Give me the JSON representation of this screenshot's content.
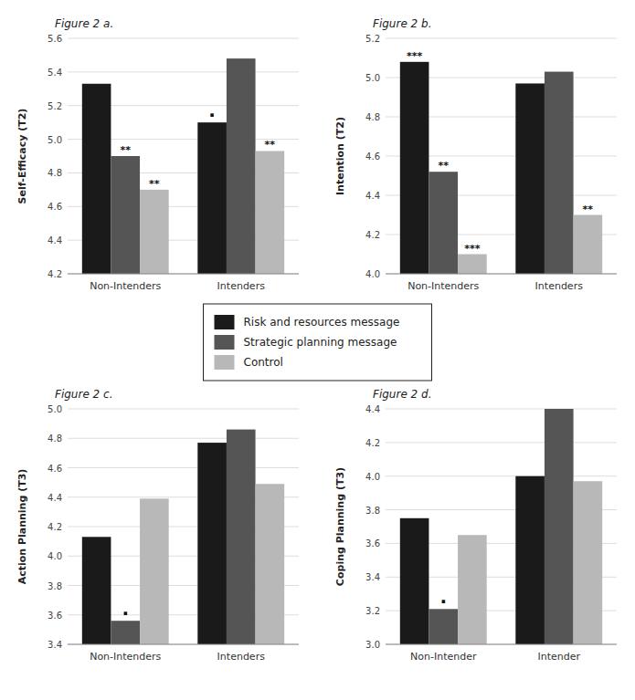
{
  "chart_data": [
    {
      "type": "bar",
      "title": "Figure 2 a.",
      "y_label": "Self-Efficacy (T2)",
      "categories": [
        "Non-Intenders",
        "Intenders"
      ],
      "series": [
        {
          "name": "Risk and resources message",
          "color": "#1a1a1a",
          "values": [
            5.33,
            5.1
          ]
        },
        {
          "name": "Strategic planning message",
          "color": "#555555",
          "values": [
            4.9,
            5.48
          ]
        },
        {
          "name": "Control",
          "color": "#b8b8b8",
          "values": [
            4.7,
            4.93
          ]
        }
      ],
      "ylim": [
        4.2,
        5.6
      ],
      "yticks": [
        4.2,
        4.4,
        4.6,
        4.8,
        {
          "value": 5,
          "label": "5.0"
        },
        5.2,
        5.4,
        5.6
      ],
      "grid": true,
      "annotations": [
        {
          "text": "**",
          "category": "Non-Intenders",
          "series": "Strategic planning message"
        },
        {
          "text": "**",
          "category": "Non-Intenders",
          "series": "Control"
        },
        {
          "text": "·",
          "category": "Intenders",
          "series": "Risk and resources message"
        },
        {
          "text": "**",
          "category": "Intenders",
          "series": "Control"
        }
      ]
    },
    {
      "type": "bar",
      "title": "Figure 2 b.",
      "y_label": "Intention (T2)",
      "categories": [
        "Non-Intenders",
        "Intenders"
      ],
      "series": [
        {
          "name": "Risk and resources message",
          "color": "#1a1a1a",
          "values": [
            5.08,
            4.97
          ]
        },
        {
          "name": "Strategic planning message",
          "color": "#555555",
          "values": [
            4.52,
            5.03
          ]
        },
        {
          "name": "Control",
          "color": "#b8b8b8",
          "values": [
            4.1,
            4.3
          ]
        }
      ],
      "ylim": [
        4.0,
        5.2
      ],
      "yticks": [
        {
          "value": 4,
          "label": "4.0"
        },
        4.2,
        4.4,
        4.6,
        4.8,
        {
          "value": 5,
          "label": "5.0"
        },
        5.2
      ],
      "grid": true,
      "annotations": [
        {
          "text": "***",
          "category": "Non-Intenders",
          "series": "Risk and resources message"
        },
        {
          "text": "**",
          "category": "Non-Intenders",
          "series": "Strategic planning message"
        },
        {
          "text": "***",
          "category": "Non-Intenders",
          "series": "Control"
        },
        {
          "text": "**",
          "category": "Intenders",
          "series": "Control"
        }
      ]
    },
    {
      "type": "bar",
      "title": "Figure 2 c.",
      "y_label": "Action Planning (T3)",
      "categories": [
        "Non-Intenders",
        "Intenders"
      ],
      "series": [
        {
          "name": "Risk and resources message",
          "color": "#1a1a1a",
          "values": [
            4.13,
            4.77
          ]
        },
        {
          "name": "Strategic planning message",
          "color": "#555555",
          "values": [
            3.56,
            4.86
          ]
        },
        {
          "name": "Control",
          "color": "#b8b8b8",
          "values": [
            4.39,
            4.49
          ]
        }
      ],
      "ylim": [
        3.4,
        5.0
      ],
      "yticks": [
        3.4,
        3.6,
        3.8,
        {
          "value": 4,
          "label": "4.0"
        },
        4.2,
        4.4,
        4.6,
        4.8,
        {
          "value": 5,
          "label": "5.0"
        }
      ],
      "grid": true,
      "annotations": [
        {
          "text": "·",
          "category": "Non-Intenders",
          "series": "Strategic planning message"
        }
      ]
    },
    {
      "type": "bar",
      "title": "Figure 2 d.",
      "y_label": "Coping Planning (T3)",
      "categories": [
        "Non-Intender",
        "Intender"
      ],
      "series": [
        {
          "name": "Risk and resources message",
          "color": "#1a1a1a",
          "values": [
            3.75,
            4.0
          ]
        },
        {
          "name": "Strategic planning message",
          "color": "#555555",
          "values": [
            3.21,
            4.4
          ]
        },
        {
          "name": "Control",
          "color": "#b8b8b8",
          "values": [
            3.65,
            3.97
          ]
        }
      ],
      "ylim": [
        3.0,
        4.4
      ],
      "yticks": [
        {
          "value": 3,
          "label": "3.0"
        },
        3.2,
        3.4,
        3.6,
        3.8,
        {
          "value": 4,
          "label": "4.0"
        },
        4.2,
        4.4
      ],
      "grid": true,
      "annotations": [
        {
          "text": "·",
          "category": "Non-Intender",
          "series": "Strategic planning message"
        }
      ]
    }
  ]
}
